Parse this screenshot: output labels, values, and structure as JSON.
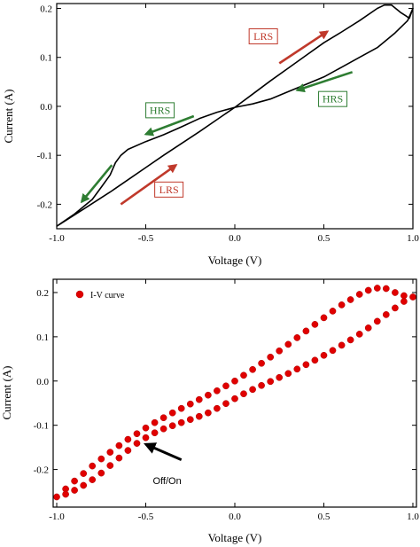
{
  "chart_data": [
    {
      "type": "line",
      "xlabel": "Voltage (V)",
      "ylabel": "Current (A)",
      "xlim": [
        -1.0,
        1.0
      ],
      "ylim": [
        -0.25,
        0.21
      ],
      "xticks": [
        -1.0,
        -0.5,
        0.0,
        0.5,
        1.0
      ],
      "xtick_labels": [
        "-1.0",
        "-0.5",
        "0.0",
        "0.5",
        "1.0"
      ],
      "yticks": [
        -0.2,
        -0.1,
        0.0,
        0.1,
        0.2
      ],
      "ytick_labels": [
        "-0.2",
        "-0.1",
        "0.0",
        "0.1",
        "0.2"
      ],
      "grid": false,
      "series": [
        {
          "x": [
            -1.0,
            -0.85,
            -0.7,
            -0.6,
            -0.5,
            -0.4,
            -0.3,
            -0.2,
            -0.1,
            0.0,
            0.1,
            0.2,
            0.3,
            0.4,
            0.5,
            0.6,
            0.7,
            0.8,
            0.84,
            0.88,
            0.93,
            0.96,
            0.98,
            1.0,
            0.97,
            0.9,
            0.8,
            0.7,
            0.6,
            0.5,
            0.4,
            0.3,
            0.2,
            0.1,
            0.0,
            -0.1,
            -0.2,
            -0.3,
            -0.4,
            -0.5,
            -0.6,
            -0.64,
            -0.67,
            -0.7,
            -0.75,
            -0.8,
            -0.9,
            -1.0
          ],
          "y": [
            -0.245,
            -0.21,
            -0.175,
            -0.15,
            -0.125,
            -0.1,
            -0.076,
            -0.052,
            -0.027,
            -0.002,
            0.025,
            0.052,
            0.078,
            0.104,
            0.13,
            0.152,
            0.175,
            0.2,
            0.207,
            0.207,
            0.192,
            0.185,
            0.18,
            0.2,
            0.175,
            0.15,
            0.12,
            0.1,
            0.08,
            0.06,
            0.045,
            0.03,
            0.015,
            0.005,
            -0.002,
            -0.012,
            -0.025,
            -0.042,
            -0.058,
            -0.072,
            -0.088,
            -0.1,
            -0.115,
            -0.14,
            -0.165,
            -0.19,
            -0.22,
            -0.245
          ]
        }
      ],
      "annotations": [
        {
          "text": "LRS",
          "color": "#c0392b",
          "x": 0.16,
          "y": 0.143
        },
        {
          "text": "HRS",
          "color": "#2e7d32",
          "x": 0.55,
          "y": 0.015
        },
        {
          "text": "HRS",
          "color": "#2e7d32",
          "x": -0.42,
          "y": -0.008
        },
        {
          "text": "LRS",
          "color": "#c0392b",
          "x": -0.37,
          "y": -0.17
        }
      ],
      "arrows": [
        {
          "color": "#c0392b",
          "from": [
            0.25,
            0.088
          ],
          "to": [
            0.52,
            0.153
          ]
        },
        {
          "color": "#2e7d32",
          "from": [
            0.66,
            0.07
          ],
          "to": [
            0.35,
            0.033
          ]
        },
        {
          "color": "#2e7d32",
          "from": [
            -0.23,
            -0.02
          ],
          "to": [
            -0.5,
            -0.057
          ]
        },
        {
          "color": "#2e7d32",
          "from": [
            -0.69,
            -0.12
          ],
          "to": [
            -0.86,
            -0.195
          ]
        },
        {
          "color": "#c0392b",
          "from": [
            -0.64,
            -0.2
          ],
          "to": [
            -0.33,
            -0.12
          ]
        }
      ]
    },
    {
      "type": "scatter",
      "xlabel": "Voltage (V)",
      "ylabel": "Current (A)",
      "xlim": [
        -1.02,
        1.02
      ],
      "ylim": [
        -0.285,
        0.23
      ],
      "xticks": [
        -1.0,
        -0.5,
        0.0,
        0.5,
        1.0
      ],
      "xtick_labels": [
        "-1.0",
        "-0.5",
        "0.0",
        "0.5",
        "1.0"
      ],
      "yticks": [
        -0.2,
        -0.1,
        0.0,
        0.1,
        0.2
      ],
      "ytick_labels": [
        "-0.2",
        "-0.1",
        "0.0",
        "0.1",
        "0.2"
      ],
      "grid": false,
      "legend_position": "top-left",
      "series": [
        {
          "name": "I-V curve",
          "color": "#e00000",
          "x": [
            -1.0,
            -0.95,
            -0.9,
            -0.85,
            -0.8,
            -0.75,
            -0.7,
            -0.65,
            -0.6,
            -0.55,
            -0.5,
            -0.45,
            -0.4,
            -0.35,
            -0.3,
            -0.25,
            -0.2,
            -0.15,
            -0.1,
            -0.05,
            0.0,
            0.05,
            0.1,
            0.15,
            0.2,
            0.25,
            0.3,
            0.35,
            0.4,
            0.45,
            0.5,
            0.55,
            0.6,
            0.65,
            0.7,
            0.75,
            0.8,
            0.85,
            0.9,
            0.95,
            1.0,
            0.95,
            0.9,
            0.85,
            0.8,
            0.75,
            0.7,
            0.65,
            0.6,
            0.55,
            0.5,
            0.45,
            0.4,
            0.35,
            0.3,
            0.25,
            0.2,
            0.15,
            0.1,
            0.05,
            0.0,
            -0.05,
            -0.1,
            -0.15,
            -0.2,
            -0.25,
            -0.3,
            -0.35,
            -0.4,
            -0.45,
            -0.5,
            -0.55,
            -0.6,
            -0.65,
            -0.7,
            -0.75,
            -0.8,
            -0.85,
            -0.9,
            -0.95
          ],
          "y": [
            -0.262,
            -0.244,
            -0.226,
            -0.209,
            -0.192,
            -0.176,
            -0.161,
            -0.146,
            -0.132,
            -0.119,
            -0.106,
            -0.094,
            -0.083,
            -0.072,
            -0.062,
            -0.052,
            -0.042,
            -0.032,
            -0.022,
            -0.011,
            0.0,
            0.013,
            0.026,
            0.04,
            0.054,
            0.068,
            0.083,
            0.098,
            0.113,
            0.128,
            0.143,
            0.158,
            0.172,
            0.184,
            0.196,
            0.205,
            0.21,
            0.209,
            0.2,
            0.193,
            0.19,
            0.18,
            0.165,
            0.15,
            0.135,
            0.12,
            0.106,
            0.093,
            0.081,
            0.069,
            0.058,
            0.047,
            0.037,
            0.027,
            0.017,
            0.008,
            -0.001,
            -0.01,
            -0.019,
            -0.029,
            -0.04,
            -0.051,
            -0.062,
            -0.072,
            -0.08,
            -0.087,
            -0.094,
            -0.101,
            -0.108,
            -0.117,
            -0.128,
            -0.141,
            -0.157,
            -0.174,
            -0.191,
            -0.208,
            -0.223,
            -0.236,
            -0.247,
            -0.256
          ]
        }
      ],
      "annotations": [
        {
          "text": "Off/On",
          "color": "#000000",
          "x": -0.38,
          "y": -0.225
        }
      ],
      "arrows": [
        {
          "color": "#000000",
          "from": [
            -0.3,
            -0.178
          ],
          "to": [
            -0.5,
            -0.143
          ]
        }
      ]
    }
  ]
}
